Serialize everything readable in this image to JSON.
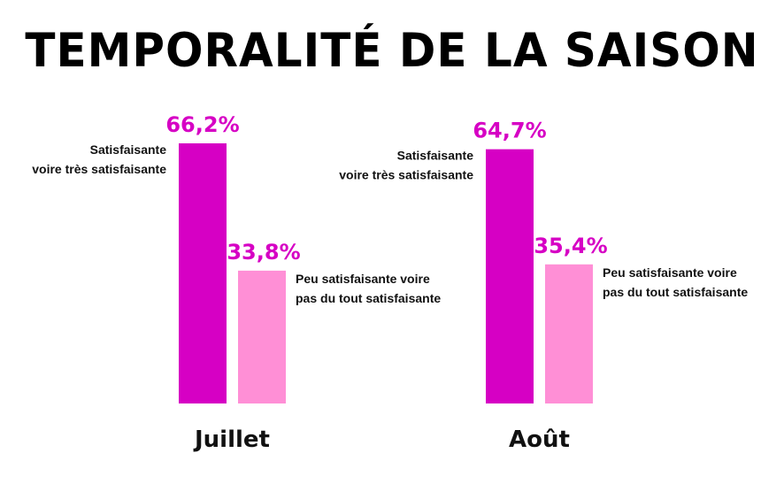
{
  "chart_data": {
    "type": "bar",
    "title": "TEMPORALITÉ DE LA SAISON",
    "categories": [
      "Juillet",
      "Août"
    ],
    "series": [
      {
        "name": "Satisfaisante voire très satisfaisante",
        "label_lines": [
          "Satisfaisante",
          "voire très satisfaisante"
        ],
        "values": [
          66.2,
          64.7
        ],
        "value_labels": [
          "66,2%",
          "64,7%"
        ],
        "color": "#d600c4"
      },
      {
        "name": "Peu satisfaisante voire pas du tout satisfaisante",
        "label_lines": [
          "Peu satisfaisante voire",
          "pas du tout satisfaisante"
        ],
        "values": [
          33.8,
          35.4
        ],
        "value_labels": [
          "33,8%",
          "35,4%"
        ],
        "color": "#ff8fd6"
      }
    ],
    "xlabel": "",
    "ylabel": "",
    "ylim": [
      0,
      66.2
    ],
    "grid": false,
    "legend": "none"
  }
}
